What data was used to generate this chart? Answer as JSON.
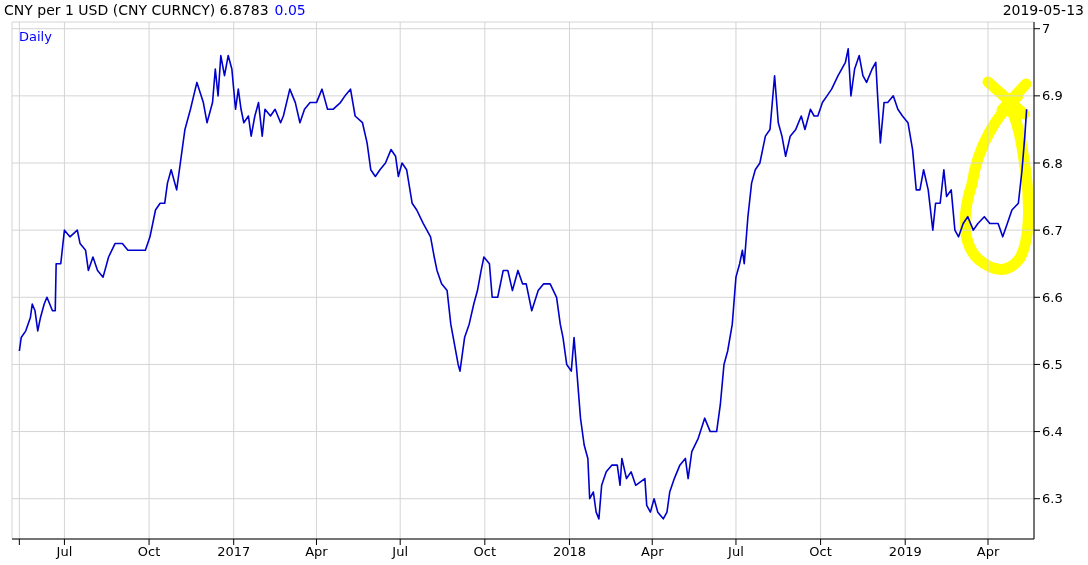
{
  "chart_data": {
    "type": "line",
    "title": "CNY per 1 USD (CNY CURNCY) 6.8783",
    "annotations": [
      "0.05",
      "2019-05-13",
      "Daily"
    ],
    "x": [
      "2016-05-13",
      "2016-05-15",
      "2016-05-20",
      "2016-05-25",
      "2016-05-27",
      "2016-05-30",
      "2016-06-02",
      "2016-06-05",
      "2016-06-09",
      "2016-06-12",
      "2016-06-18",
      "2016-06-21",
      "2016-06-22",
      "2016-06-27",
      "2016-07-01",
      "2016-07-07",
      "2016-07-15",
      "2016-07-18",
      "2016-07-24",
      "2016-07-27",
      "2016-08-01",
      "2016-08-06",
      "2016-08-12",
      "2016-08-18",
      "2016-08-25",
      "2016-09-02",
      "2016-09-08",
      "2016-09-18",
      "2016-09-27",
      "2016-10-02",
      "2016-10-08",
      "2016-10-13",
      "2016-10-18",
      "2016-10-21",
      "2016-10-25",
      "2016-10-31",
      "2016-11-04",
      "2016-11-09",
      "2016-11-15",
      "2016-11-22",
      "2016-11-29",
      "2016-12-03",
      "2016-12-09",
      "2016-12-12",
      "2016-12-15",
      "2016-12-18",
      "2016-12-22",
      "2016-12-26",
      "2016-12-30",
      "2017-01-03",
      "2017-01-06",
      "2017-01-09",
      "2017-01-12",
      "2017-01-17",
      "2017-01-20",
      "2017-01-24",
      "2017-01-28",
      "2017-02-01",
      "2017-02-04",
      "2017-02-10",
      "2017-02-15",
      "2017-02-21",
      "2017-02-24",
      "2017-03-03",
      "2017-03-09",
      "2017-03-14",
      "2017-03-19",
      "2017-03-25",
      "2017-04-01",
      "2017-04-07",
      "2017-04-13",
      "2017-04-19",
      "2017-04-27",
      "2017-05-02",
      "2017-05-08",
      "2017-05-13",
      "2017-05-21",
      "2017-05-26",
      "2017-05-30",
      "2017-06-04",
      "2017-06-09",
      "2017-06-15",
      "2017-06-21",
      "2017-06-26",
      "2017-06-29",
      "2017-07-03",
      "2017-07-08",
      "2017-07-14",
      "2017-07-19",
      "2017-07-26",
      "2017-08-03",
      "2017-08-07",
      "2017-08-10",
      "2017-08-15",
      "2017-08-21",
      "2017-08-25",
      "2017-09-02",
      "2017-09-04",
      "2017-09-09",
      "2017-09-14",
      "2017-09-19",
      "2017-09-23",
      "2017-09-27",
      "2017-09-30",
      "2017-10-06",
      "2017-10-09",
      "2017-10-15",
      "2017-10-21",
      "2017-10-26",
      "2017-10-31",
      "2017-11-06",
      "2017-11-11",
      "2017-11-15",
      "2017-11-21",
      "2017-11-28",
      "2017-12-04",
      "2017-12-11",
      "2017-12-18",
      "2017-12-22",
      "2017-12-25",
      "2017-12-29",
      "2018-01-03",
      "2018-01-06",
      "2018-01-09",
      "2018-01-13",
      "2018-01-17",
      "2018-01-21",
      "2018-01-23",
      "2018-01-27",
      "2018-01-30",
      "2018-02-02",
      "2018-02-05",
      "2018-02-10",
      "2018-02-16",
      "2018-02-22",
      "2018-02-25",
      "2018-02-27",
      "2018-03-04",
      "2018-03-09",
      "2018-03-14",
      "2018-03-24",
      "2018-03-26",
      "2018-03-30",
      "2018-04-03",
      "2018-04-07",
      "2018-04-13",
      "2018-04-17",
      "2018-04-20",
      "2018-04-25",
      "2018-05-01",
      "2018-05-07",
      "2018-05-10",
      "2018-05-14",
      "2018-05-21",
      "2018-05-28",
      "2018-06-03",
      "2018-06-10",
      "2018-06-14",
      "2018-06-18",
      "2018-06-22",
      "2018-06-27",
      "2018-07-01",
      "2018-07-05",
      "2018-07-08",
      "2018-07-10",
      "2018-07-14",
      "2018-07-18",
      "2018-07-22",
      "2018-07-27",
      "2018-08-02",
      "2018-08-07",
      "2018-08-12",
      "2018-08-16",
      "2018-08-20",
      "2018-08-24",
      "2018-08-29",
      "2018-09-04",
      "2018-09-10",
      "2018-09-14",
      "2018-09-20",
      "2018-09-24",
      "2018-09-28",
      "2018-10-03",
      "2018-10-08",
      "2018-10-13",
      "2018-10-20",
      "2018-10-28",
      "2018-10-31",
      "2018-11-03",
      "2018-11-07",
      "2018-11-12",
      "2018-11-16",
      "2018-11-20",
      "2018-11-26",
      "2018-11-30",
      "2018-12-02",
      "2018-12-05",
      "2018-12-09",
      "2018-12-13",
      "2018-12-19",
      "2018-12-24",
      "2018-12-29",
      "2019-01-04",
      "2019-01-09",
      "2019-01-13",
      "2019-01-17",
      "2019-01-21",
      "2019-01-26",
      "2019-01-31",
      "2019-02-03",
      "2019-02-08",
      "2019-02-12",
      "2019-02-15",
      "2019-02-20",
      "2019-02-24",
      "2019-02-28",
      "2019-03-05",
      "2019-03-10",
      "2019-03-16",
      "2019-03-21",
      "2019-03-28",
      "2019-04-03",
      "2019-04-12",
      "2019-04-17",
      "2019-04-22",
      "2019-04-27",
      "2019-05-04",
      "2019-05-08",
      "2019-05-11",
      "2019-05-13"
    ],
    "series": [
      {
        "color": "#0000cc",
        "values": [
          6.52,
          6.54,
          6.55,
          6.57,
          6.59,
          6.58,
          6.55,
          6.57,
          6.59,
          6.6,
          6.58,
          6.58,
          6.65,
          6.65,
          6.7,
          6.69,
          6.7,
          6.68,
          6.67,
          6.64,
          6.66,
          6.64,
          6.63,
          6.66,
          6.68,
          6.68,
          6.67,
          6.67,
          6.67,
          6.69,
          6.73,
          6.74,
          6.74,
          6.77,
          6.79,
          6.76,
          6.8,
          6.85,
          6.88,
          6.92,
          6.89,
          6.86,
          6.89,
          6.94,
          6.9,
          6.96,
          6.93,
          6.96,
          6.94,
          6.88,
          6.91,
          6.88,
          6.86,
          6.87,
          6.84,
          6.87,
          6.89,
          6.84,
          6.88,
          6.87,
          6.88,
          6.86,
          6.87,
          6.91,
          6.89,
          6.86,
          6.88,
          6.89,
          6.89,
          6.91,
          6.88,
          6.88,
          6.89,
          6.9,
          6.91,
          6.87,
          6.86,
          6.83,
          6.79,
          6.78,
          6.79,
          6.8,
          6.82,
          6.81,
          6.78,
          6.8,
          6.79,
          6.74,
          6.73,
          6.71,
          6.69,
          6.66,
          6.64,
          6.62,
          6.61,
          6.56,
          6.5,
          6.49,
          6.54,
          6.56,
          6.59,
          6.61,
          6.64,
          6.66,
          6.65,
          6.6,
          6.6,
          6.64,
          6.64,
          6.61,
          6.64,
          6.62,
          6.62,
          6.58,
          6.61,
          6.62,
          6.62,
          6.6,
          6.56,
          6.54,
          6.5,
          6.49,
          6.54,
          6.49,
          6.42,
          6.38,
          6.36,
          6.3,
          6.31,
          6.28,
          6.27,
          6.32,
          6.34,
          6.35,
          6.35,
          6.32,
          6.36,
          6.33,
          6.34,
          6.32,
          6.33,
          6.29,
          6.28,
          6.3,
          6.28,
          6.27,
          6.28,
          6.31,
          6.33,
          6.35,
          6.36,
          6.33,
          6.37,
          6.39,
          6.42,
          6.4,
          6.4,
          6.44,
          6.5,
          6.52,
          6.56,
          6.63,
          6.65,
          6.67,
          6.65,
          6.72,
          6.77,
          6.79,
          6.8,
          6.84,
          6.85,
          6.93,
          6.86,
          6.84,
          6.81,
          6.84,
          6.85,
          6.87,
          6.85,
          6.88,
          6.87,
          6.87,
          6.89,
          6.9,
          6.91,
          6.93,
          6.95,
          6.97,
          6.9,
          6.94,
          6.96,
          6.93,
          6.92,
          6.94,
          6.95,
          6.9,
          6.83,
          6.89,
          6.89,
          6.9,
          6.88,
          6.87,
          6.86,
          6.82,
          6.76,
          6.76,
          6.79,
          6.76,
          6.7,
          6.74,
          6.74,
          6.79,
          6.75,
          6.76,
          6.7,
          6.69,
          6.71,
          6.72,
          6.7,
          6.71,
          6.72,
          6.71,
          6.71,
          6.69,
          6.71,
          6.73,
          6.74,
          6.79,
          6.84,
          6.88
        ]
      }
    ],
    "xlim": [
      "2016-05-05",
      "2019-05-21"
    ],
    "xticks": [
      {
        "value": "2016-05-13",
        "label": null
      },
      {
        "value": "2016-07-01",
        "label": "Jul"
      },
      {
        "value": "2016-10-01",
        "label": "Oct"
      },
      {
        "value": "2017-01-01",
        "label": "2017"
      },
      {
        "value": "2017-04-01",
        "label": "Apr"
      },
      {
        "value": "2017-07-01",
        "label": "Jul"
      },
      {
        "value": "2017-10-01",
        "label": "Oct"
      },
      {
        "value": "2018-01-01",
        "label": "2018"
      },
      {
        "value": "2018-04-01",
        "label": "Apr"
      },
      {
        "value": "2018-07-01",
        "label": "Jul"
      },
      {
        "value": "2018-10-01",
        "label": "Oct"
      },
      {
        "value": "2019-01-01",
        "label": "2019"
      },
      {
        "value": "2019-04-01",
        "label": "Apr"
      }
    ],
    "ylim": [
      6.24,
      7.01
    ],
    "yticks": [
      6.3,
      6.4,
      6.5,
      6.6,
      6.7,
      6.8,
      6.9,
      7
    ],
    "grid": true,
    "marker": "none",
    "line_style": "solid"
  }
}
